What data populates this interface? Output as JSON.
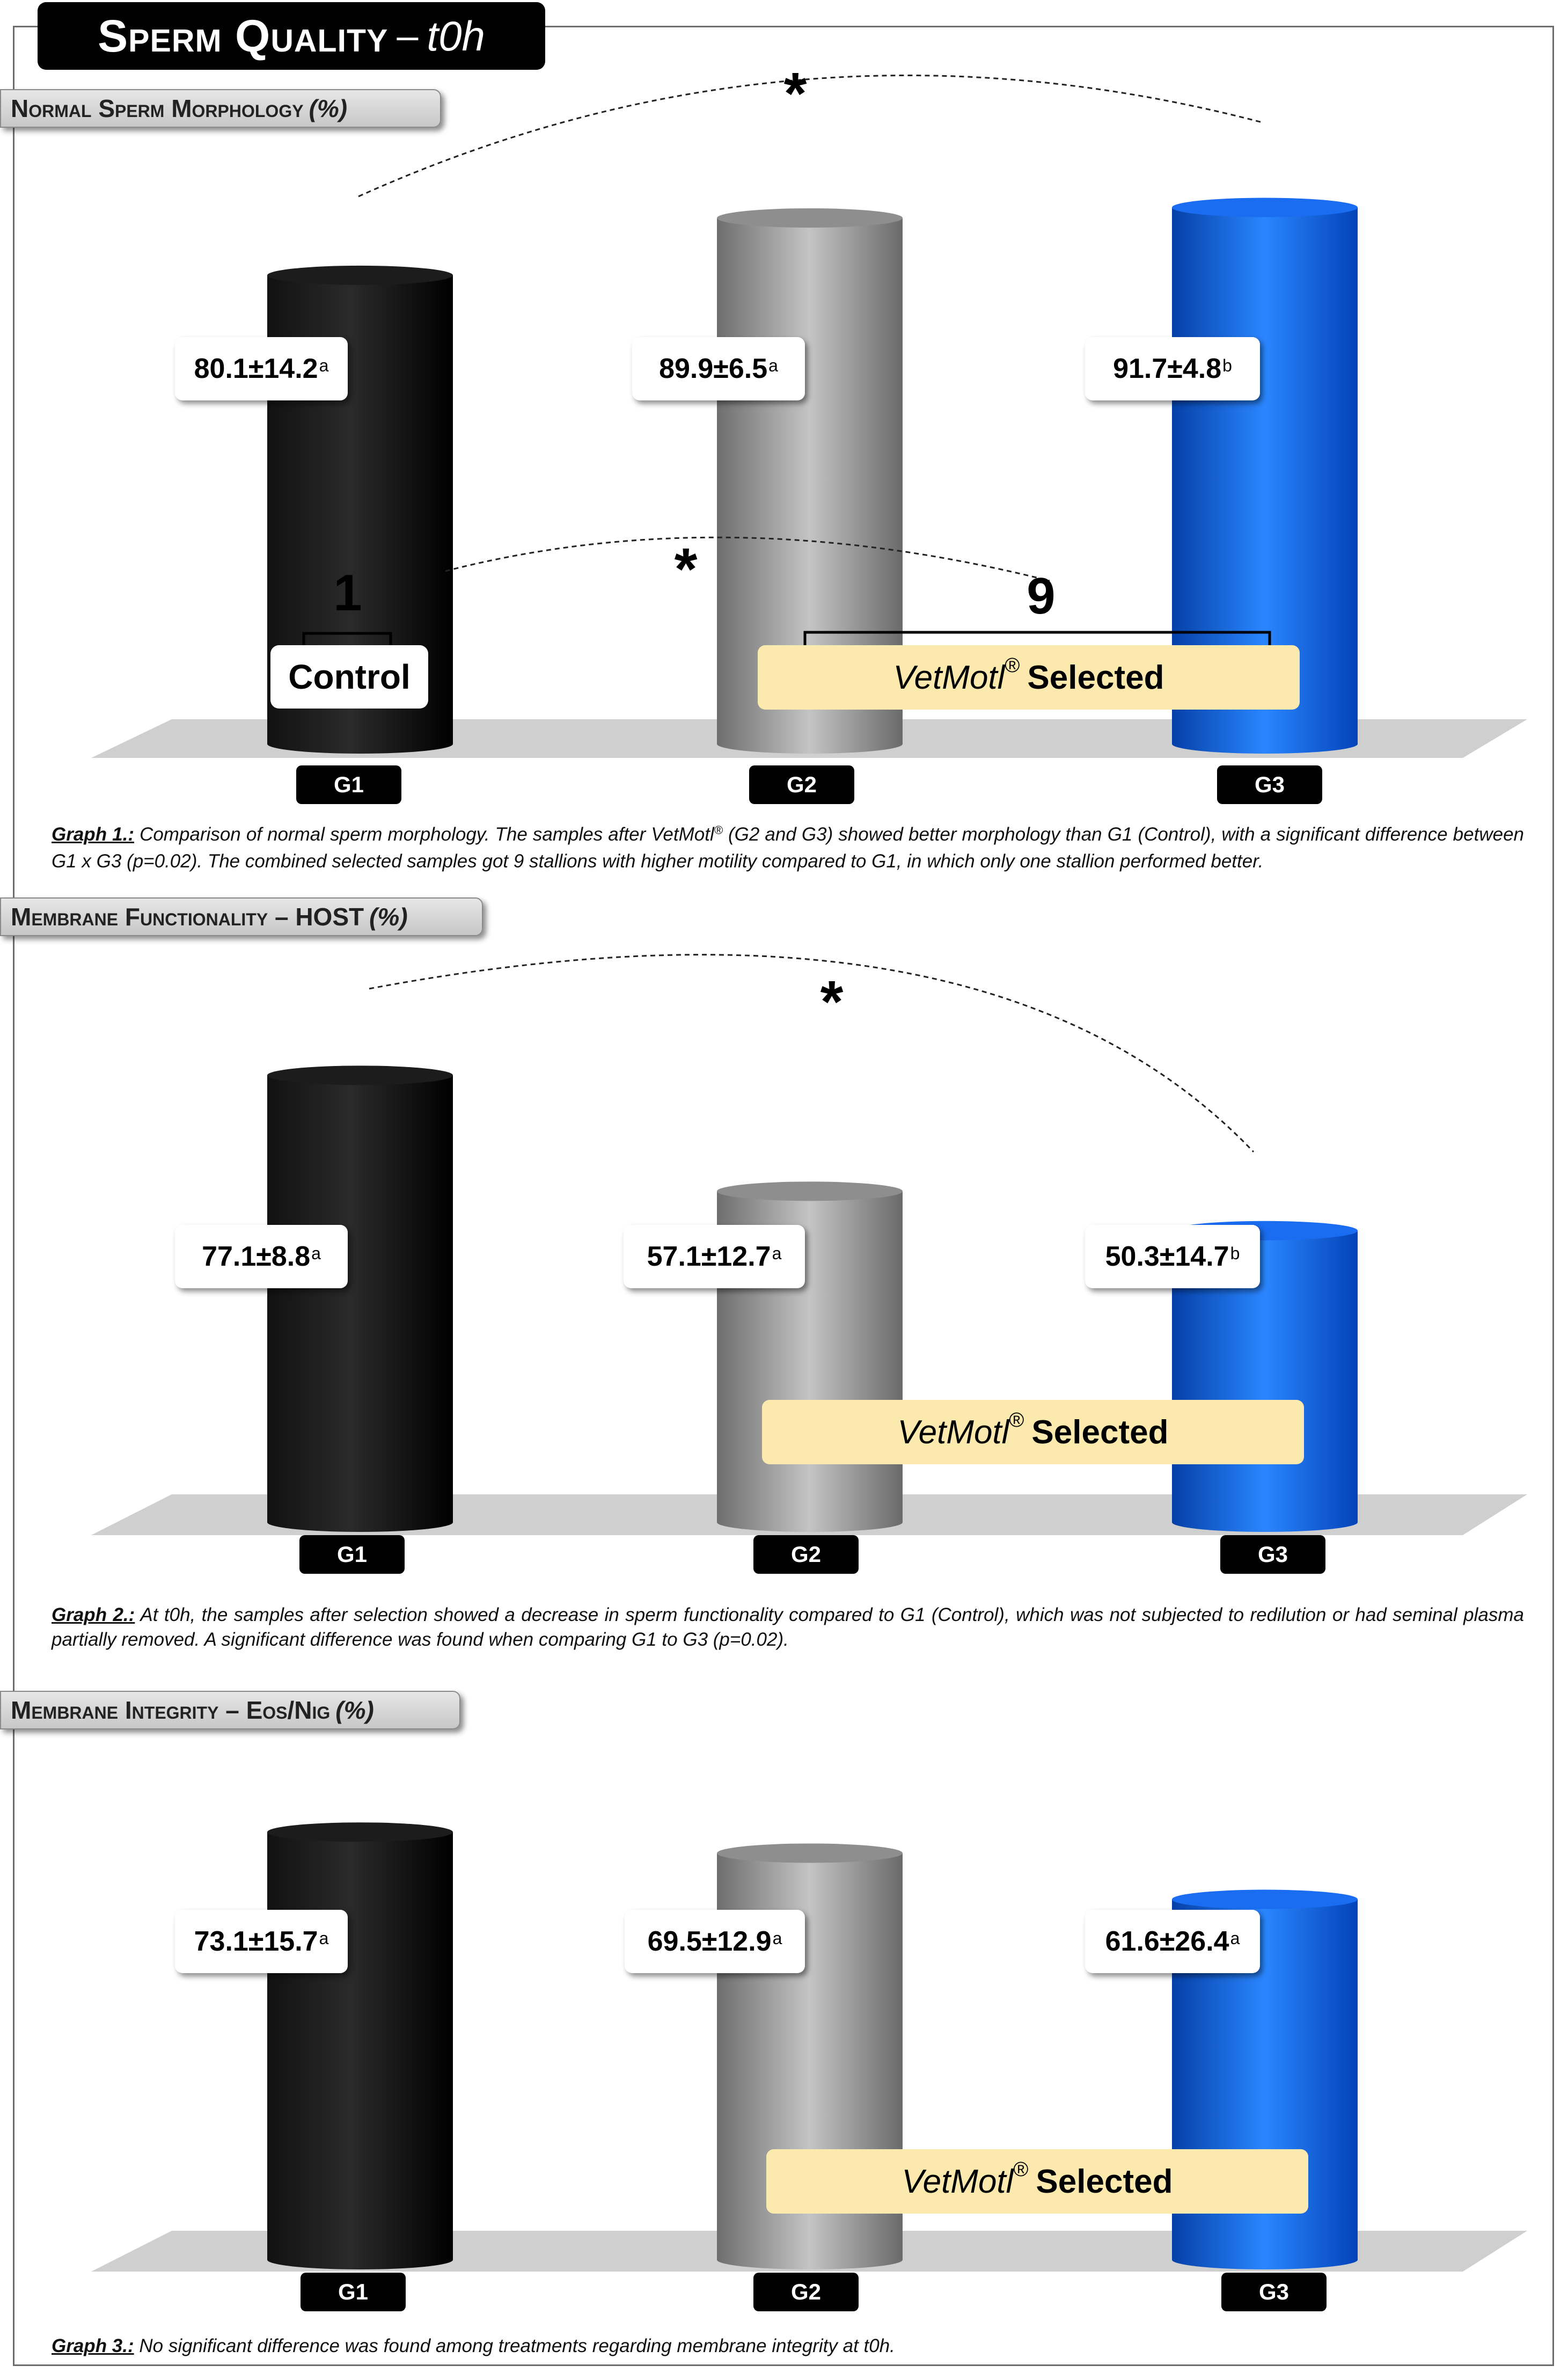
{
  "page": {
    "title_main": "Sperm Quality",
    "title_sep": "–",
    "title_sub": "t0h"
  },
  "labels": {
    "brand": "VetMotl",
    "registered": "®",
    "selected": "Selected",
    "control": "Control",
    "significance_marker": "*"
  },
  "colors": {
    "G1": "#000000",
    "G2": "#9a9a9a",
    "G3": "#0a5fe0",
    "vetmoti_box": "#fce9ae",
    "floor": "#cfcfcf"
  },
  "chart_data": [
    {
      "type": "bar",
      "title": "Normal Sperm Morphology",
      "unit": "(%)",
      "categories": [
        "G1",
        "G2",
        "G3"
      ],
      "values": [
        80.1,
        89.9,
        91.7
      ],
      "sd": [
        14.2,
        6.5,
        4.8
      ],
      "letters": [
        "a",
        "a",
        "b"
      ],
      "value_labels": [
        "80.1±14.2",
        "89.9±6.5",
        "91.7±4.8"
      ],
      "significance": [
        {
          "from": "G1",
          "to": "G3",
          "marker": "*"
        },
        {
          "from": "G1",
          "to": "G2+G3",
          "marker": "*"
        }
      ],
      "stallion_counts": {
        "control": "1",
        "selected": "9"
      },
      "caption_label": "Graph 1.:",
      "caption_a": "Comparison of normal sperm morphology. The samples after VetMotl",
      "caption_b": "(G2 and G3) showed better morphology than G1 (Control), with a significant difference between G1 x G3 (p=0.02). The combined selected samples got 9 stallions with higher motility compared to G1, in which only one stallion performed better."
    },
    {
      "type": "bar",
      "title": "Membrane Functionality – HOST",
      "unit": "(%)",
      "categories": [
        "G1",
        "G2",
        "G3"
      ],
      "values": [
        77.1,
        57.1,
        50.3
      ],
      "sd": [
        8.8,
        12.7,
        14.7
      ],
      "letters": [
        "a",
        "a",
        "b"
      ],
      "value_labels": [
        "77.1±8.8",
        "57.1±12.7",
        "50.3±14.7"
      ],
      "significance": [
        {
          "from": "G1",
          "to": "G3",
          "marker": "*"
        }
      ],
      "caption_label": "Graph 2.:",
      "caption_a": "At t0h, the samples after selection showed a decrease in sperm functionality compared to G1 (Control), which was not subjected to redilution or had seminal plasma partially removed. A significant difference was found when comparing G1 to G3 (p=0.02).",
      "caption_b": ""
    },
    {
      "type": "bar",
      "title": "Membrane Integrity – Eos/Nig",
      "unit": "(%)",
      "categories": [
        "G1",
        "G2",
        "G3"
      ],
      "values": [
        73.1,
        69.5,
        61.6
      ],
      "sd": [
        15.7,
        12.9,
        26.4
      ],
      "letters": [
        "a",
        "a",
        "a"
      ],
      "value_labels": [
        "73.1±15.7",
        "69.5±12.9",
        "61.6±26.4"
      ],
      "significance": [],
      "caption_label": "Graph 3.:",
      "caption_a": "No significant difference was found among treatments regarding membrane integrity at t0h.",
      "caption_b": ""
    }
  ]
}
